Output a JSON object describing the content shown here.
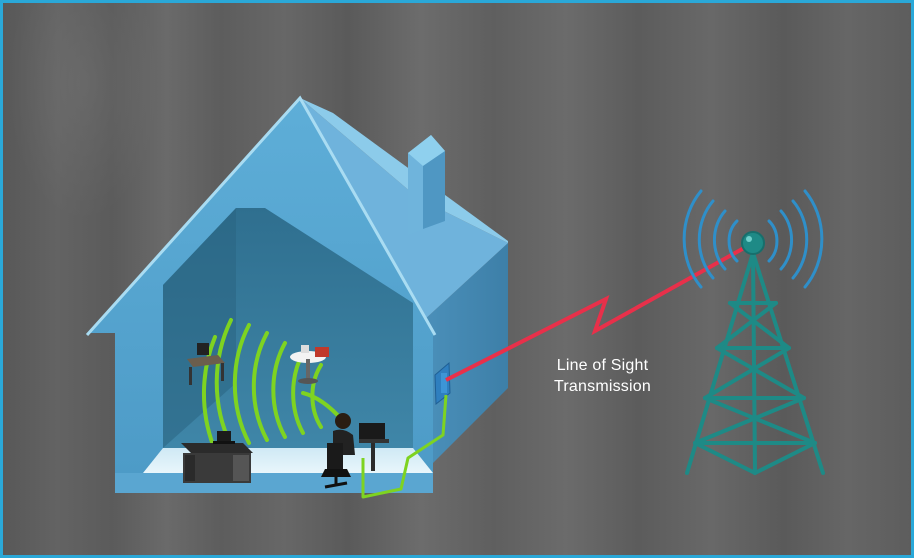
{
  "caption": {
    "line1": "Line of Sight",
    "line2": "Transmission"
  },
  "colors": {
    "frame_border": "#2aa8d8",
    "house": "#5aa9d3",
    "wifi_waves": "#7ed321",
    "link_line": "#e8304a",
    "tower": "#1e8a86",
    "tower_signal": "#2f8fc9"
  },
  "icons": [
    "house",
    "wifi-waves",
    "desk-computer",
    "person-at-computer",
    "wall-antenna",
    "cable",
    "lightning-link",
    "cell-tower",
    "tower-signal"
  ]
}
